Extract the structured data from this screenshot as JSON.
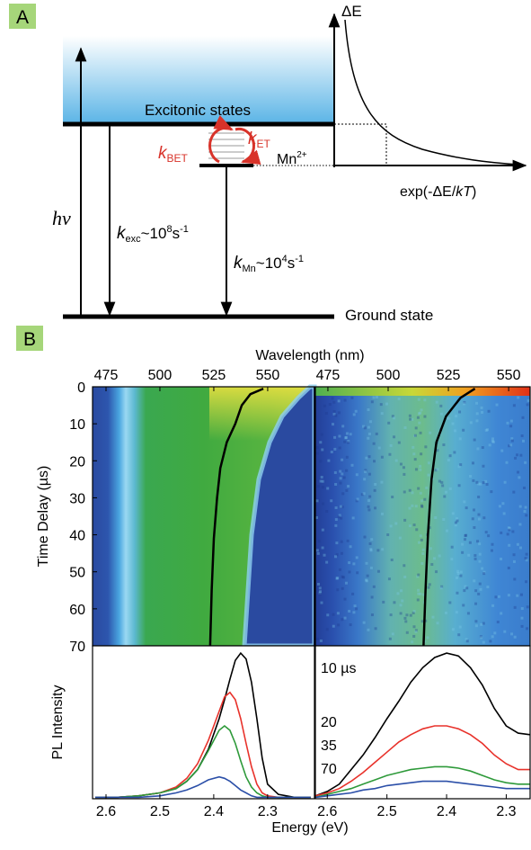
{
  "panel_a": {
    "label": "A",
    "delta_e": "ΔE",
    "excitonic": "Excitonic states",
    "k_bet": {
      "symbol": "k",
      "sub": "BET"
    },
    "k_et": {
      "symbol": "k",
      "sub": "ET"
    },
    "mn": {
      "text": "Mn",
      "sup": "2+"
    },
    "exp_label": {
      "pre": "exp(-",
      "de": "ΔE",
      "slash": "/",
      "kt": "kT",
      "post": ")"
    },
    "hv": "hν",
    "k_exc": {
      "symbol": "k",
      "sub": "exc",
      "text": "~10",
      "sup": "8",
      "unit": "s",
      "unit_sup": "-1"
    },
    "k_mn": {
      "symbol": "k",
      "sub": "Mn",
      "text": "~10",
      "sup": "4",
      "unit": "s",
      "unit_sup": "-1"
    },
    "ground": "Ground state"
  },
  "panel_b_label": "B",
  "chart_data": [
    {
      "type": "heatmap",
      "xlabel": "Wavelength (nm)",
      "ylabel": "Time Delay (µs)",
      "xlim": [
        468.75,
        571.7
      ],
      "xticks": [
        475,
        500,
        525,
        550
      ],
      "ylim": [
        0,
        70
      ],
      "yticks": [
        0,
        10,
        20,
        30,
        40,
        50,
        60,
        70
      ],
      "y_reversed": true,
      "x": [
        548,
        542,
        538,
        535,
        531,
        528,
        526.5,
        525,
        524,
        523.3
      ],
      "y": [
        0.5,
        2,
        5,
        10,
        15,
        22,
        30,
        41,
        55,
        70
      ],
      "color": "#000000"
    },
    {
      "type": "heatmap",
      "xlim": [
        469.8,
        558.9
      ],
      "xticks": [
        475,
        500,
        525,
        550
      ],
      "ylim": [
        0,
        70
      ],
      "y_reversed": true,
      "x": [
        536,
        530,
        524,
        520,
        518,
        516.5,
        515.5,
        514.7
      ],
      "y": [
        0.5,
        3,
        8,
        15,
        25,
        40,
        55,
        70
      ],
      "color": "#000000"
    },
    {
      "type": "line",
      "xlabel": "Energy (eV)",
      "ylabel": "PL Intensity",
      "xlim": [
        2.625,
        2.213
      ],
      "xticks": [
        2.6,
        2.5,
        2.4,
        2.3
      ],
      "ylim": [
        0,
        1.05
      ],
      "x": [
        2.62,
        2.58,
        2.54,
        2.5,
        2.47,
        2.45,
        2.43,
        2.41,
        2.39,
        2.38,
        2.37,
        2.36,
        2.35,
        2.34,
        2.33,
        2.32,
        2.31,
        2.3,
        2.28,
        2.25,
        2.22
      ],
      "series": [
        {
          "color": "#000000",
          "values": [
            0.01,
            0.01,
            0.02,
            0.04,
            0.07,
            0.12,
            0.2,
            0.34,
            0.55,
            0.68,
            0.82,
            0.95,
            1.0,
            0.96,
            0.8,
            0.55,
            0.28,
            0.1,
            0.03,
            0.01,
            0.01
          ]
        },
        {
          "color": "#e8322b",
          "values": [
            0.01,
            0.01,
            0.02,
            0.04,
            0.08,
            0.14,
            0.24,
            0.4,
            0.6,
            0.7,
            0.73,
            0.68,
            0.55,
            0.38,
            0.22,
            0.1,
            0.04,
            0.02,
            0.01,
            0.01,
            0.01
          ]
        },
        {
          "color": "#2e9a3a",
          "values": [
            0.01,
            0.01,
            0.02,
            0.04,
            0.07,
            0.12,
            0.2,
            0.33,
            0.47,
            0.5,
            0.47,
            0.38,
            0.26,
            0.15,
            0.08,
            0.04,
            0.02,
            0.01,
            0.01,
            0.01,
            0.01
          ]
        },
        {
          "color": "#2b4fa8",
          "values": [
            0.01,
            0.01,
            0.01,
            0.02,
            0.04,
            0.06,
            0.09,
            0.13,
            0.15,
            0.14,
            0.12,
            0.09,
            0.06,
            0.04,
            0.02,
            0.01,
            0.01,
            0.01,
            0.01,
            0.01,
            0.01
          ]
        }
      ]
    },
    {
      "type": "line",
      "xlim": [
        2.62,
        2.26
      ],
      "xticks": [
        2.6,
        2.5,
        2.4,
        2.3
      ],
      "ylim": [
        0,
        1.05
      ],
      "annotations": [
        "10 µs",
        "20",
        "35",
        "70"
      ],
      "x": [
        2.62,
        2.6,
        2.58,
        2.56,
        2.54,
        2.52,
        2.5,
        2.48,
        2.46,
        2.44,
        2.42,
        2.4,
        2.38,
        2.36,
        2.34,
        2.32,
        2.3,
        2.28,
        2.26
      ],
      "series": [
        {
          "color": "#000000",
          "values": [
            0.02,
            0.05,
            0.1,
            0.2,
            0.3,
            0.42,
            0.55,
            0.67,
            0.8,
            0.9,
            0.97,
            1.0,
            0.98,
            0.9,
            0.78,
            0.62,
            0.5,
            0.45,
            0.44
          ]
        },
        {
          "color": "#e8322b",
          "values": [
            0.02,
            0.04,
            0.07,
            0.12,
            0.18,
            0.25,
            0.32,
            0.39,
            0.44,
            0.48,
            0.5,
            0.5,
            0.48,
            0.44,
            0.38,
            0.3,
            0.24,
            0.2,
            0.2
          ]
        },
        {
          "color": "#2e9a3a",
          "values": [
            0.01,
            0.03,
            0.05,
            0.07,
            0.1,
            0.13,
            0.16,
            0.18,
            0.2,
            0.21,
            0.22,
            0.22,
            0.21,
            0.19,
            0.16,
            0.13,
            0.11,
            0.1,
            0.1
          ]
        },
        {
          "color": "#2b4fa8",
          "values": [
            0.01,
            0.02,
            0.03,
            0.04,
            0.06,
            0.07,
            0.09,
            0.1,
            0.11,
            0.12,
            0.12,
            0.12,
            0.11,
            0.1,
            0.09,
            0.08,
            0.07,
            0.07,
            0.07
          ]
        }
      ]
    }
  ]
}
